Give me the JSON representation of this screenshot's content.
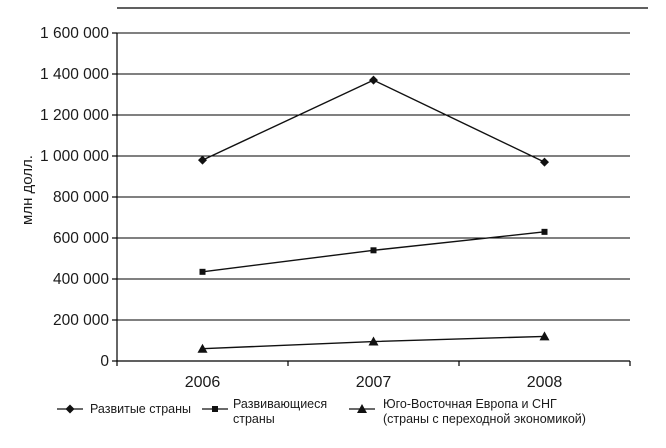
{
  "chart_data": {
    "type": "line",
    "title": "",
    "xlabel": "",
    "ylabel": "млн долл.",
    "ylim": [
      0,
      1600000
    ],
    "yticks": [
      0,
      200000,
      400000,
      600000,
      800000,
      1000000,
      1200000,
      1400000,
      1600000
    ],
    "ytick_labels": [
      "0",
      "200 000",
      "400 000",
      "600 000",
      "800 000",
      "1 000 000",
      "1 200 000",
      "1 400 000",
      "1 600 000"
    ],
    "categories": [
      "2006",
      "2007",
      "2008"
    ],
    "grid": true,
    "legend_position": "bottom",
    "series": [
      {
        "name": "Развитые страны",
        "marker": "diamond",
        "values": [
          980000,
          1370000,
          970000
        ]
      },
      {
        "name": "Развивающиеся страны",
        "name_lines": [
          "Развивающиеся",
          "страны"
        ],
        "marker": "square",
        "values": [
          435000,
          540000,
          630000
        ]
      },
      {
        "name": "Юго-Восточная Европа и СНГ (страны с переходной экономикой)",
        "name_lines": [
          "Юго-Восточная Европа и СНГ",
          "(страны с переходной экономикой)"
        ],
        "marker": "triangle",
        "values": [
          60000,
          95000,
          120000
        ]
      }
    ]
  }
}
